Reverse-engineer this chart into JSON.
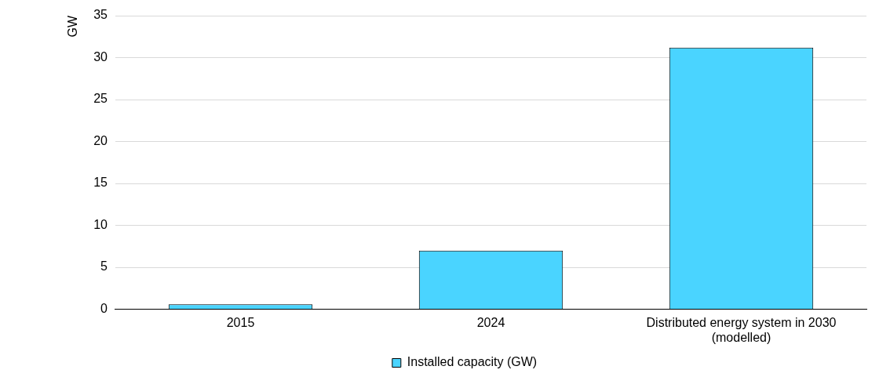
{
  "chart_data": {
    "type": "bar",
    "ylabel": "GW",
    "categories": [
      "2015",
      "2024",
      "Distributed energy system in 2030 (modelled)"
    ],
    "series": [
      {
        "name": "Installed capacity (GW)",
        "color": "#4ad4ff",
        "values": [
          0.6,
          7.0,
          31.2
        ]
      }
    ],
    "ylim": [
      0,
      35
    ],
    "yticks": [
      0,
      5,
      10,
      15,
      20,
      25,
      30,
      35
    ],
    "grid": "y",
    "legend": "bottom"
  }
}
